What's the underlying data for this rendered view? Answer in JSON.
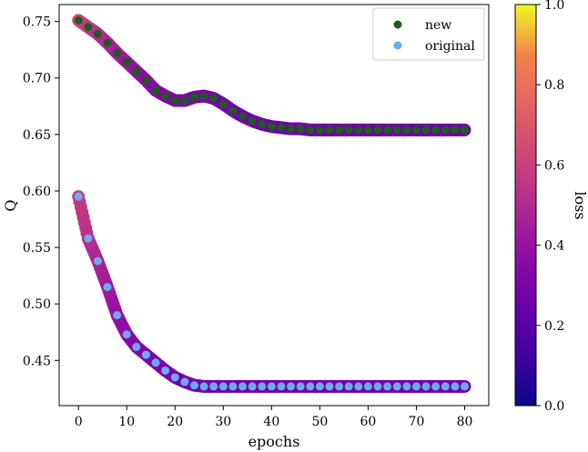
{
  "chart_data": {
    "type": "scatter",
    "title": "",
    "xlabel": "epochs",
    "ylabel": "Q",
    "xlim": [
      -4,
      85
    ],
    "ylim": [
      0.41,
      0.765
    ],
    "xticks": [
      0,
      10,
      20,
      30,
      40,
      50,
      60,
      70,
      80
    ],
    "yticks": [
      0.45,
      0.5,
      0.55,
      0.6,
      0.65,
      0.7,
      0.75
    ],
    "ytick_labels": [
      "0.45",
      "0.50",
      "0.55",
      "0.60",
      "0.65",
      "0.70",
      "0.75"
    ],
    "legend": {
      "position": "top-right"
    },
    "colorbar": {
      "label": "loss",
      "colormap": "plasma",
      "range": [
        0.0,
        1.0
      ],
      "ticks": [
        0.0,
        0.2,
        0.4,
        0.6,
        0.8,
        1.0
      ],
      "tick_labels": [
        "0.0",
        "0.2",
        "0.4",
        "0.6",
        "0.8",
        "1.0"
      ]
    },
    "series": [
      {
        "name": "new",
        "marker_color": "#1e5b1e",
        "x": [
          0,
          2,
          4,
          6,
          8,
          10,
          12,
          14,
          16,
          18,
          20,
          22,
          24,
          26,
          28,
          30,
          32,
          34,
          36,
          38,
          40,
          42,
          44,
          46,
          48,
          50,
          52,
          54,
          56,
          58,
          60,
          62,
          64,
          66,
          68,
          70,
          72,
          74,
          76,
          78,
          80
        ],
        "y": [
          0.751,
          0.745,
          0.739,
          0.731,
          0.722,
          0.714,
          0.706,
          0.698,
          0.689,
          0.684,
          0.68,
          0.68,
          0.683,
          0.684,
          0.682,
          0.677,
          0.671,
          0.666,
          0.662,
          0.659,
          0.657,
          0.656,
          0.655,
          0.655,
          0.654,
          0.654,
          0.654,
          0.654,
          0.654,
          0.654,
          0.654,
          0.654,
          0.654,
          0.654,
          0.654,
          0.654,
          0.654,
          0.654,
          0.654,
          0.654,
          0.654
        ],
        "loss": [
          0.63,
          0.58,
          0.53,
          0.49,
          0.45,
          0.42,
          0.39,
          0.37,
          0.35,
          0.33,
          0.32,
          0.31,
          0.31,
          0.3,
          0.3,
          0.29,
          0.29,
          0.28,
          0.28,
          0.28,
          0.27,
          0.27,
          0.27,
          0.27,
          0.27,
          0.27,
          0.27,
          0.27,
          0.27,
          0.27,
          0.27,
          0.27,
          0.27,
          0.27,
          0.27,
          0.27,
          0.27,
          0.27,
          0.27,
          0.27,
          0.27
        ]
      },
      {
        "name": "original",
        "marker_color": "#6aaaf0",
        "x": [
          0,
          2,
          4,
          6,
          8,
          10,
          12,
          14,
          16,
          18,
          20,
          22,
          24,
          26,
          28,
          30,
          32,
          34,
          36,
          38,
          40,
          42,
          44,
          46,
          48,
          50,
          52,
          54,
          56,
          58,
          60,
          62,
          64,
          66,
          68,
          70,
          72,
          74,
          76,
          78,
          80
        ],
        "y": [
          0.595,
          0.558,
          0.538,
          0.515,
          0.49,
          0.473,
          0.462,
          0.455,
          0.448,
          0.441,
          0.435,
          0.431,
          0.428,
          0.427,
          0.427,
          0.427,
          0.427,
          0.427,
          0.427,
          0.427,
          0.427,
          0.427,
          0.427,
          0.427,
          0.427,
          0.427,
          0.427,
          0.427,
          0.427,
          0.427,
          0.427,
          0.427,
          0.427,
          0.427,
          0.427,
          0.427,
          0.427,
          0.427,
          0.427,
          0.427,
          0.427
        ],
        "loss": [
          0.58,
          0.53,
          0.48,
          0.44,
          0.4,
          0.37,
          0.35,
          0.33,
          0.32,
          0.31,
          0.3,
          0.29,
          0.29,
          0.28,
          0.28,
          0.28,
          0.28,
          0.28,
          0.28,
          0.28,
          0.28,
          0.28,
          0.28,
          0.28,
          0.28,
          0.28,
          0.28,
          0.28,
          0.28,
          0.28,
          0.28,
          0.28,
          0.28,
          0.28,
          0.28,
          0.28,
          0.28,
          0.28,
          0.28,
          0.28,
          0.28
        ]
      }
    ]
  }
}
